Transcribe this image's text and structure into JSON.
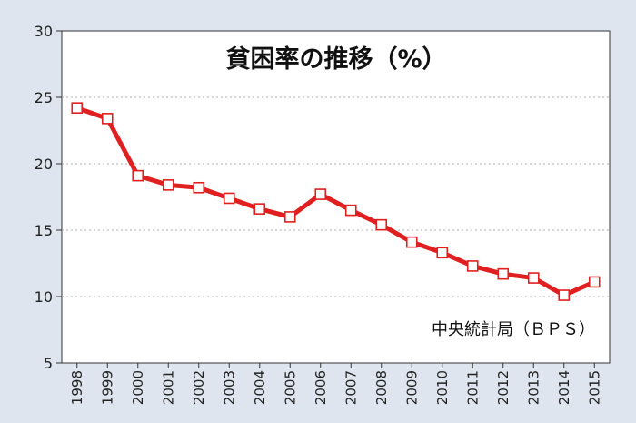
{
  "chart_data": {
    "type": "line",
    "title": "貧困率の推移（%）",
    "source": "中央統計局（ＢＰＳ）",
    "xlabel": "",
    "ylabel": "",
    "categories": [
      "1998",
      "1999",
      "2000",
      "2001",
      "2002",
      "2003",
      "2004",
      "2005",
      "2006",
      "2007",
      "2008",
      "2009",
      "2010",
      "2011",
      "2012",
      "2013",
      "2014",
      "2015"
    ],
    "series": [
      {
        "values": [
          24.2,
          23.4,
          19.1,
          18.4,
          18.2,
          17.4,
          16.6,
          16.0,
          17.7,
          16.5,
          15.4,
          14.1,
          13.3,
          12.3,
          11.7,
          11.4,
          10.1,
          11.1
        ]
      }
    ],
    "ylim": [
      5,
      30
    ],
    "yticks": [
      5,
      10,
      15,
      20,
      25,
      30
    ],
    "grid": true,
    "colors": {
      "line": "#e02020",
      "marker_fill": "#ffffff",
      "background": "#dfe5ee",
      "plot_bg": "#ffffff",
      "grid": "#b0b0b0"
    }
  }
}
